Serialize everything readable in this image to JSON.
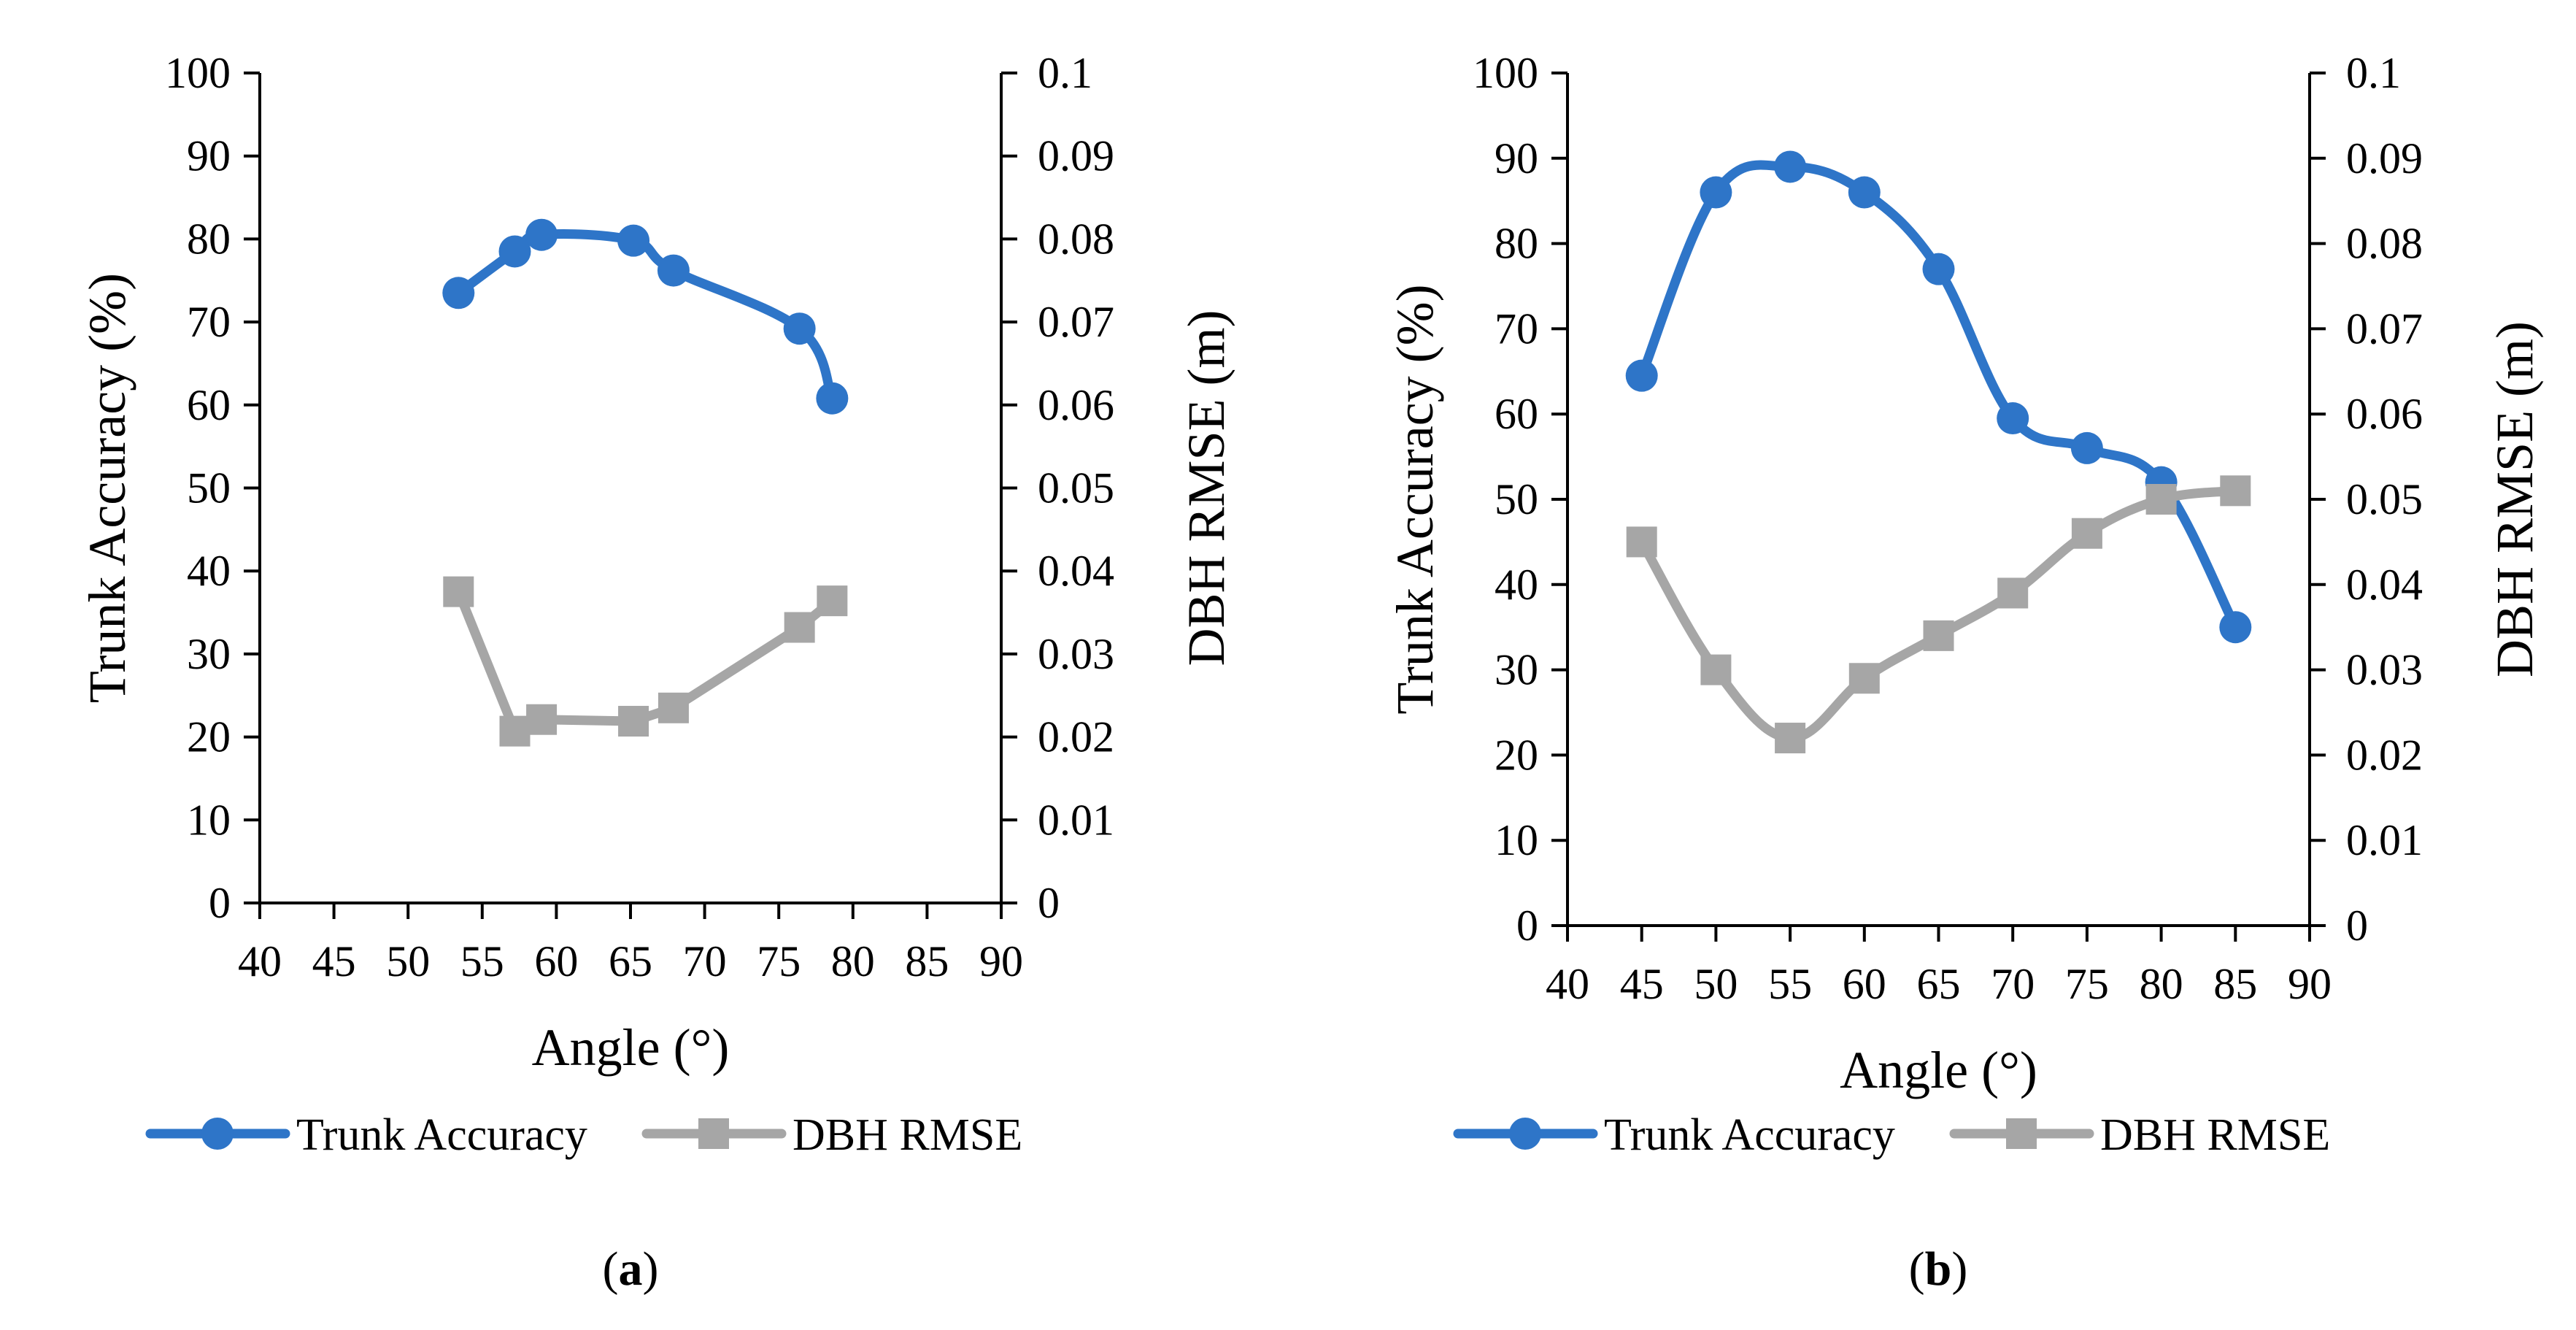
{
  "colors": {
    "accuracy": "#2E75C8",
    "rmse": "#A6A6A6",
    "axis": "#000000"
  },
  "chart_data": [
    {
      "type": "line",
      "panel_label": "(a)",
      "panel_letter": "a",
      "xlabel": "Angle (°)",
      "ylabel": "Trunk Accuracy (%)",
      "y2label": "DBH RMSE (m)",
      "xlim": [
        40,
        90
      ],
      "ylim": [
        0,
        100
      ],
      "y2lim": [
        0,
        0.1
      ],
      "xticks": [
        "40",
        "45",
        "50",
        "55",
        "60",
        "65",
        "70",
        "75",
        "80",
        "85",
        "90"
      ],
      "yticks": [
        "0",
        "10",
        "20",
        "30",
        "40",
        "50",
        "60",
        "70",
        "80",
        "90",
        "100"
      ],
      "y2ticks": [
        "0",
        "0.01",
        "0.02",
        "0.03",
        "0.04",
        "0.05",
        "0.06",
        "0.07",
        "0.08",
        "0.09",
        "0.1"
      ],
      "legend": [
        "Trunk Accuracy",
        "DBH RMSE"
      ],
      "series": [
        {
          "name": "Trunk Accuracy",
          "axis": "left",
          "marker": "circle",
          "smooth": true,
          "x": [
            53.4,
            57.2,
            59.0,
            65.2,
            67.9,
            76.4,
            78.6
          ],
          "values": [
            73.5,
            78.5,
            80.5,
            79.8,
            76.2,
            69.2,
            60.8
          ]
        },
        {
          "name": "DBH RMSE",
          "axis": "right",
          "marker": "square",
          "smooth": false,
          "x": [
            53.4,
            57.2,
            59.0,
            65.2,
            67.9,
            76.4,
            78.6
          ],
          "values": [
            0.0375,
            0.0207,
            0.0221,
            0.0219,
            0.0235,
            0.0332,
            0.0364
          ]
        }
      ]
    },
    {
      "type": "line",
      "panel_label": "(b)",
      "panel_letter": "b",
      "xlabel": "Angle (°)",
      "ylabel": "Trunk Accuracy (%)",
      "y2label": "DBH RMSE (m)",
      "xlim": [
        40,
        90
      ],
      "ylim": [
        0,
        100
      ],
      "y2lim": [
        0,
        0.1
      ],
      "xticks": [
        "40",
        "45",
        "50",
        "55",
        "60",
        "65",
        "70",
        "75",
        "80",
        "85",
        "90"
      ],
      "yticks": [
        "0",
        "10",
        "20",
        "30",
        "40",
        "50",
        "60",
        "70",
        "80",
        "90",
        "100"
      ],
      "y2ticks": [
        "0",
        "0.01",
        "0.02",
        "0.03",
        "0.04",
        "0.05",
        "0.06",
        "0.07",
        "0.08",
        "0.09",
        "0.1"
      ],
      "legend": [
        "Trunk  Accuracy",
        "DBH RMSE"
      ],
      "series": [
        {
          "name": "Trunk  Accuracy",
          "axis": "left",
          "marker": "circle",
          "smooth": true,
          "x": [
            45,
            50,
            55,
            60,
            65,
            70,
            75,
            80,
            85
          ],
          "values": [
            64.5,
            86,
            89,
            86,
            77,
            59.5,
            56,
            52,
            35
          ]
        },
        {
          "name": "DBH RMSE",
          "axis": "right",
          "marker": "square",
          "smooth": true,
          "x": [
            45,
            50,
            55,
            60,
            65,
            70,
            75,
            80,
            85
          ],
          "values": [
            0.045,
            0.03,
            0.022,
            0.029,
            0.034,
            0.039,
            0.046,
            0.05,
            0.051
          ]
        }
      ]
    }
  ]
}
